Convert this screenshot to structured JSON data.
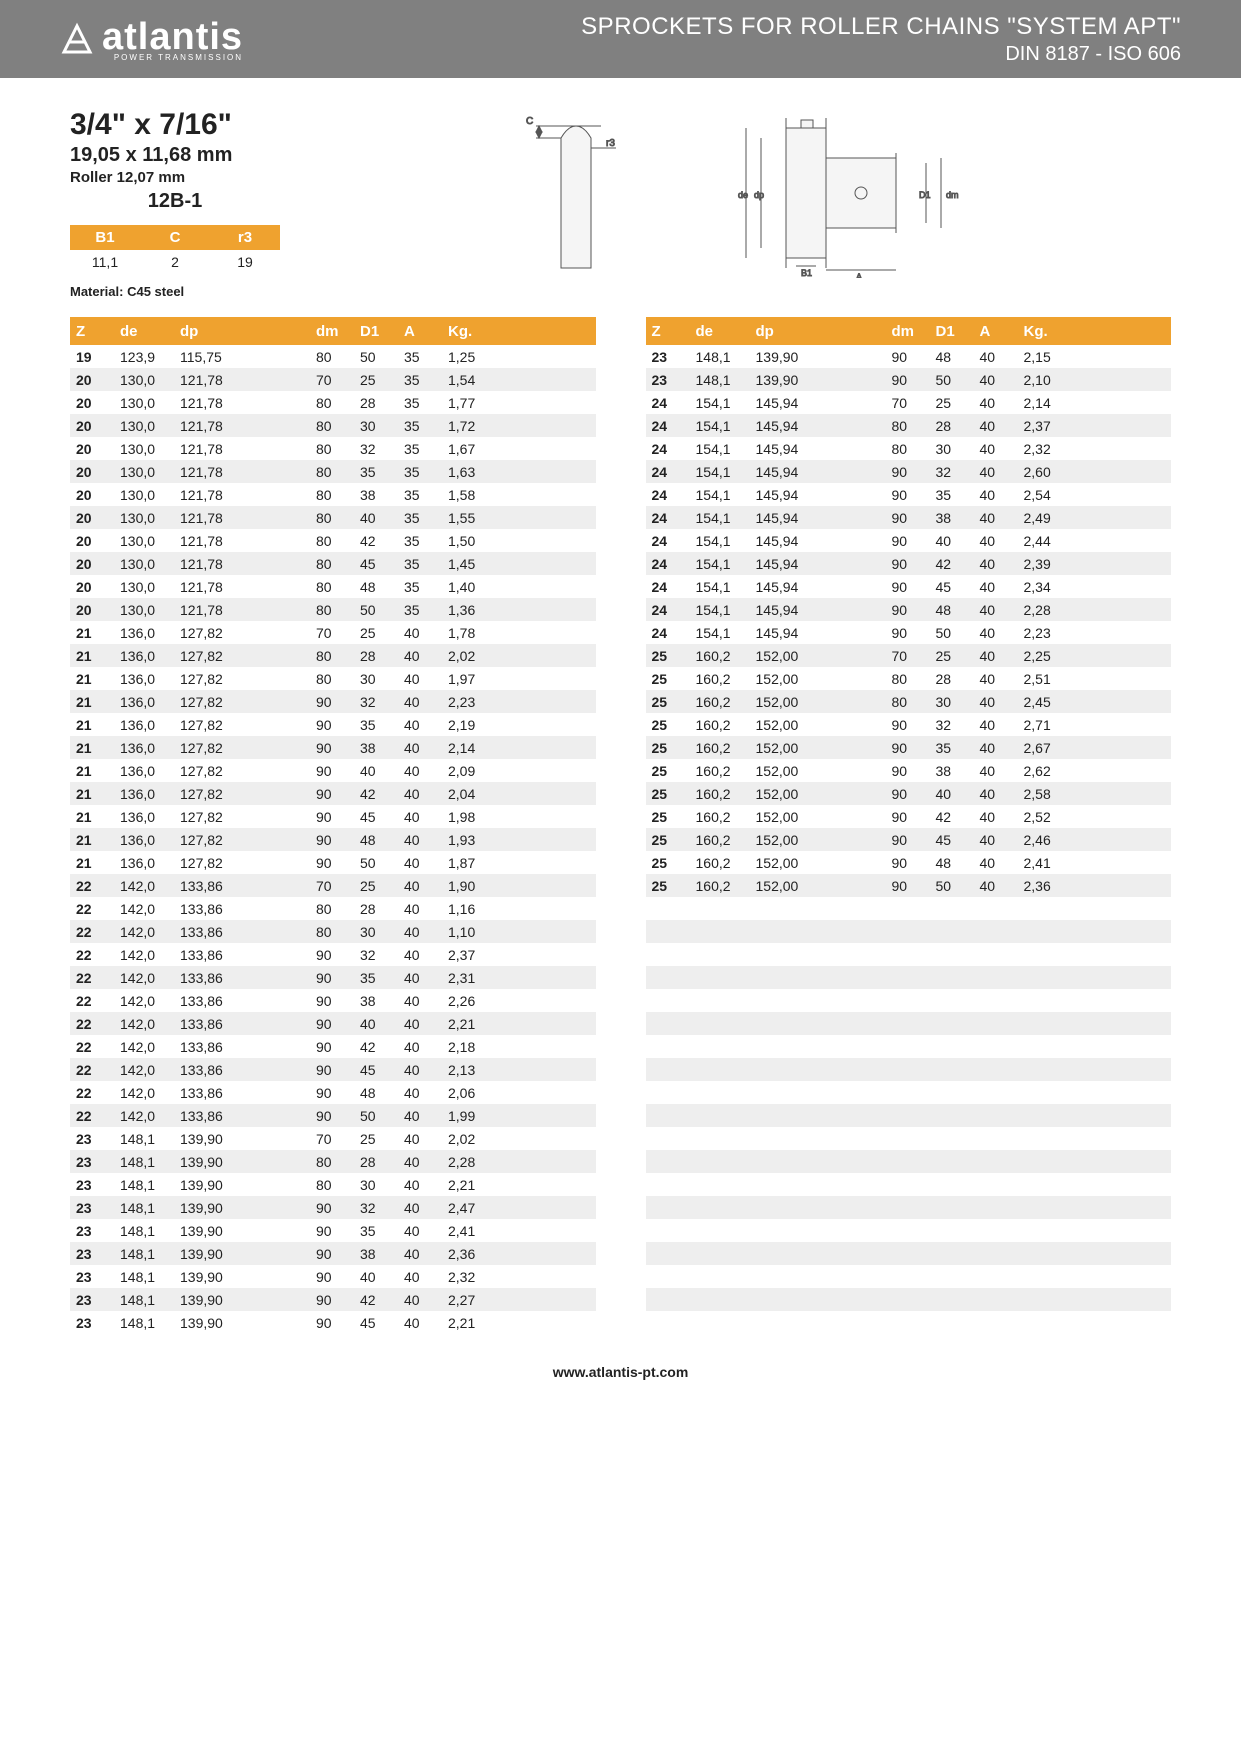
{
  "header": {
    "logo_text": "atlantis",
    "logo_sub": "POWER TRANSMISSION",
    "title1": "SPROCKETS FOR ROLLER CHAINS \"SYSTEM APT\"",
    "title2": "DIN 8187 - ISO 606"
  },
  "spec": {
    "main": "3/4\" x 7/16\"",
    "mm": "19,05 x 11,68 mm",
    "roller": "Roller 12,07 mm",
    "code": "12B-1"
  },
  "small_table": {
    "headers": [
      "B1",
      "C",
      "r3"
    ],
    "values": [
      "11,1",
      "2",
      "19"
    ]
  },
  "material": "Material: C45 steel",
  "table_headers": [
    "Z",
    "de",
    "dp",
    "dm",
    "D1",
    "A",
    "Kg."
  ],
  "footer": "www.atlantis-pt.com",
  "colors": {
    "header_bg": "#808080",
    "accent": "#efa22f",
    "row_alt": "#eeeeee",
    "text": "#222222"
  },
  "left_rows": [
    [
      "19",
      "123,9",
      "115,75",
      "80",
      "50",
      "35",
      "1,25"
    ],
    [
      "20",
      "130,0",
      "121,78",
      "70",
      "25",
      "35",
      "1,54"
    ],
    [
      "20",
      "130,0",
      "121,78",
      "80",
      "28",
      "35",
      "1,77"
    ],
    [
      "20",
      "130,0",
      "121,78",
      "80",
      "30",
      "35",
      "1,72"
    ],
    [
      "20",
      "130,0",
      "121,78",
      "80",
      "32",
      "35",
      "1,67"
    ],
    [
      "20",
      "130,0",
      "121,78",
      "80",
      "35",
      "35",
      "1,63"
    ],
    [
      "20",
      "130,0",
      "121,78",
      "80",
      "38",
      "35",
      "1,58"
    ],
    [
      "20",
      "130,0",
      "121,78",
      "80",
      "40",
      "35",
      "1,55"
    ],
    [
      "20",
      "130,0",
      "121,78",
      "80",
      "42",
      "35",
      "1,50"
    ],
    [
      "20",
      "130,0",
      "121,78",
      "80",
      "45",
      "35",
      "1,45"
    ],
    [
      "20",
      "130,0",
      "121,78",
      "80",
      "48",
      "35",
      "1,40"
    ],
    [
      "20",
      "130,0",
      "121,78",
      "80",
      "50",
      "35",
      "1,36"
    ],
    [
      "21",
      "136,0",
      "127,82",
      "70",
      "25",
      "40",
      "1,78"
    ],
    [
      "21",
      "136,0",
      "127,82",
      "80",
      "28",
      "40",
      "2,02"
    ],
    [
      "21",
      "136,0",
      "127,82",
      "80",
      "30",
      "40",
      "1,97"
    ],
    [
      "21",
      "136,0",
      "127,82",
      "90",
      "32",
      "40",
      "2,23"
    ],
    [
      "21",
      "136,0",
      "127,82",
      "90",
      "35",
      "40",
      "2,19"
    ],
    [
      "21",
      "136,0",
      "127,82",
      "90",
      "38",
      "40",
      "2,14"
    ],
    [
      "21",
      "136,0",
      "127,82",
      "90",
      "40",
      "40",
      "2,09"
    ],
    [
      "21",
      "136,0",
      "127,82",
      "90",
      "42",
      "40",
      "2,04"
    ],
    [
      "21",
      "136,0",
      "127,82",
      "90",
      "45",
      "40",
      "1,98"
    ],
    [
      "21",
      "136,0",
      "127,82",
      "90",
      "48",
      "40",
      "1,93"
    ],
    [
      "21",
      "136,0",
      "127,82",
      "90",
      "50",
      "40",
      "1,87"
    ],
    [
      "22",
      "142,0",
      "133,86",
      "70",
      "25",
      "40",
      "1,90"
    ],
    [
      "22",
      "142,0",
      "133,86",
      "80",
      "28",
      "40",
      "1,16"
    ],
    [
      "22",
      "142,0",
      "133,86",
      "80",
      "30",
      "40",
      "1,10"
    ],
    [
      "22",
      "142,0",
      "133,86",
      "90",
      "32",
      "40",
      "2,37"
    ],
    [
      "22",
      "142,0",
      "133,86",
      "90",
      "35",
      "40",
      "2,31"
    ],
    [
      "22",
      "142,0",
      "133,86",
      "90",
      "38",
      "40",
      "2,26"
    ],
    [
      "22",
      "142,0",
      "133,86",
      "90",
      "40",
      "40",
      "2,21"
    ],
    [
      "22",
      "142,0",
      "133,86",
      "90",
      "42",
      "40",
      "2,18"
    ],
    [
      "22",
      "142,0",
      "133,86",
      "90",
      "45",
      "40",
      "2,13"
    ],
    [
      "22",
      "142,0",
      "133,86",
      "90",
      "48",
      "40",
      "2,06"
    ],
    [
      "22",
      "142,0",
      "133,86",
      "90",
      "50",
      "40",
      "1,99"
    ],
    [
      "23",
      "148,1",
      "139,90",
      "70",
      "25",
      "40",
      "2,02"
    ],
    [
      "23",
      "148,1",
      "139,90",
      "80",
      "28",
      "40",
      "2,28"
    ],
    [
      "23",
      "148,1",
      "139,90",
      "80",
      "30",
      "40",
      "2,21"
    ],
    [
      "23",
      "148,1",
      "139,90",
      "90",
      "32",
      "40",
      "2,47"
    ],
    [
      "23",
      "148,1",
      "139,90",
      "90",
      "35",
      "40",
      "2,41"
    ],
    [
      "23",
      "148,1",
      "139,90",
      "90",
      "38",
      "40",
      "2,36"
    ],
    [
      "23",
      "148,1",
      "139,90",
      "90",
      "40",
      "40",
      "2,32"
    ],
    [
      "23",
      "148,1",
      "139,90",
      "90",
      "42",
      "40",
      "2,27"
    ],
    [
      "23",
      "148,1",
      "139,90",
      "90",
      "45",
      "40",
      "2,21"
    ]
  ],
  "right_rows": [
    [
      "23",
      "148,1",
      "139,90",
      "90",
      "48",
      "40",
      "2,15"
    ],
    [
      "23",
      "148,1",
      "139,90",
      "90",
      "50",
      "40",
      "2,10"
    ],
    [
      "24",
      "154,1",
      "145,94",
      "70",
      "25",
      "40",
      "2,14"
    ],
    [
      "24",
      "154,1",
      "145,94",
      "80",
      "28",
      "40",
      "2,37"
    ],
    [
      "24",
      "154,1",
      "145,94",
      "80",
      "30",
      "40",
      "2,32"
    ],
    [
      "24",
      "154,1",
      "145,94",
      "90",
      "32",
      "40",
      "2,60"
    ],
    [
      "24",
      "154,1",
      "145,94",
      "90",
      "35",
      "40",
      "2,54"
    ],
    [
      "24",
      "154,1",
      "145,94",
      "90",
      "38",
      "40",
      "2,49"
    ],
    [
      "24",
      "154,1",
      "145,94",
      "90",
      "40",
      "40",
      "2,44"
    ],
    [
      "24",
      "154,1",
      "145,94",
      "90",
      "42",
      "40",
      "2,39"
    ],
    [
      "24",
      "154,1",
      "145,94",
      "90",
      "45",
      "40",
      "2,34"
    ],
    [
      "24",
      "154,1",
      "145,94",
      "90",
      "48",
      "40",
      "2,28"
    ],
    [
      "24",
      "154,1",
      "145,94",
      "90",
      "50",
      "40",
      "2,23"
    ],
    [
      "25",
      "160,2",
      "152,00",
      "70",
      "25",
      "40",
      "2,25"
    ],
    [
      "25",
      "160,2",
      "152,00",
      "80",
      "28",
      "40",
      "2,51"
    ],
    [
      "25",
      "160,2",
      "152,00",
      "80",
      "30",
      "40",
      "2,45"
    ],
    [
      "25",
      "160,2",
      "152,00",
      "90",
      "32",
      "40",
      "2,71"
    ],
    [
      "25",
      "160,2",
      "152,00",
      "90",
      "35",
      "40",
      "2,67"
    ],
    [
      "25",
      "160,2",
      "152,00",
      "90",
      "38",
      "40",
      "2,62"
    ],
    [
      "25",
      "160,2",
      "152,00",
      "90",
      "40",
      "40",
      "2,58"
    ],
    [
      "25",
      "160,2",
      "152,00",
      "90",
      "42",
      "40",
      "2,52"
    ],
    [
      "25",
      "160,2",
      "152,00",
      "90",
      "45",
      "40",
      "2,46"
    ],
    [
      "25",
      "160,2",
      "152,00",
      "90",
      "48",
      "40",
      "2,41"
    ],
    [
      "25",
      "160,2",
      "152,00",
      "90",
      "50",
      "40",
      "2,36"
    ]
  ]
}
